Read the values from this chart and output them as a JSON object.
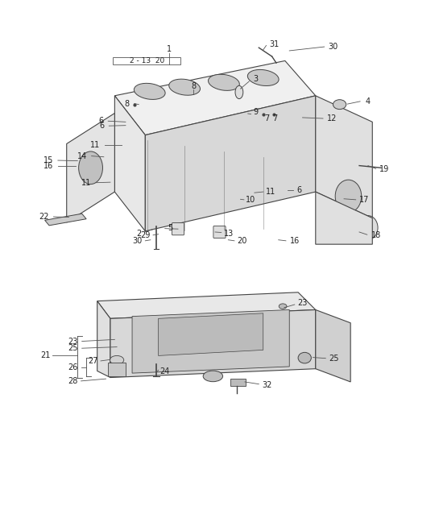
{
  "bg_color": "#ffffff",
  "line_color": "#555555",
  "text_color": "#222222",
  "figsize": [
    5.45,
    6.28
  ],
  "dpi": 100
}
